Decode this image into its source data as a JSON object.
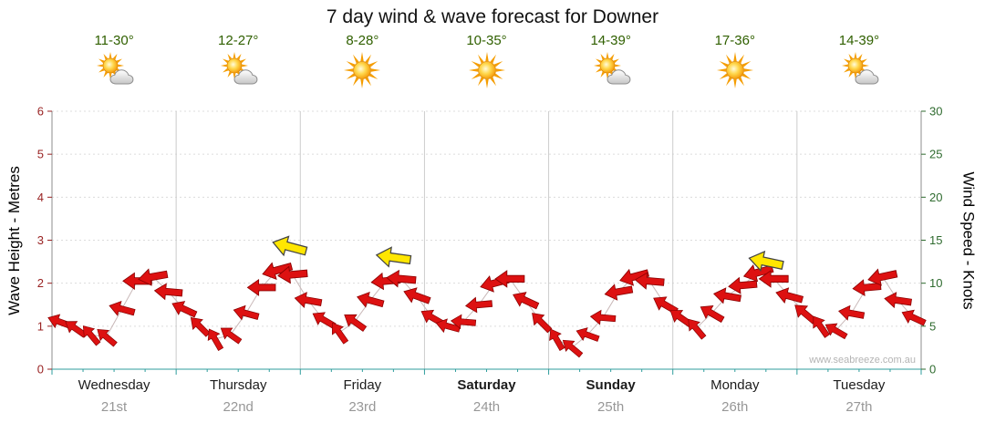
{
  "title": "7 day wind & wave forecast for Downer",
  "watermark": "www.seabreeze.com.au",
  "axes": {
    "left_label": "Wave Height - Metres",
    "right_label": "Wind Speed - Knots",
    "left_ticks": [
      0,
      1,
      2,
      3,
      4,
      5,
      6
    ],
    "right_ticks": [
      0,
      5,
      10,
      15,
      20,
      25,
      30
    ]
  },
  "days": [
    {
      "name": "Wednesday",
      "date": "21st",
      "temp": "11-30°",
      "icon": "partly-cloudy",
      "bold": false
    },
    {
      "name": "Thursday",
      "date": "22nd",
      "temp": "12-27°",
      "icon": "partly-cloudy",
      "bold": false
    },
    {
      "name": "Friday",
      "date": "23rd",
      "temp": "8-28°",
      "icon": "sunny",
      "bold": false
    },
    {
      "name": "Saturday",
      "date": "24th",
      "temp": "10-35°",
      "icon": "sunny",
      "bold": true
    },
    {
      "name": "Sunday",
      "date": "25th",
      "temp": "14-39°",
      "icon": "partly-cloudy",
      "bold": true
    },
    {
      "name": "Monday",
      "date": "26th",
      "temp": "17-36°",
      "icon": "sunny",
      "bold": false
    },
    {
      "name": "Tuesday",
      "date": "27th",
      "temp": "14-39°",
      "icon": "partly-cloudy",
      "bold": false
    }
  ],
  "colors": {
    "arrow_red": "#dd1111",
    "arrow_outline": "#8a0000",
    "gust_yellow": "#ffe600",
    "gust_outline": "#444444",
    "temp_text": "#306000",
    "left_axis_text": "#992222",
    "right_axis_text": "#2f6b2f",
    "day_separator": "#cccccc",
    "grid_dotted": "#dcdcdc",
    "axis_line": "#8c8c8c",
    "bottom_axis": "#2f9d9d",
    "date_text": "#979797",
    "trend_line": "#c9b8b8"
  },
  "chart_data": {
    "type": "line",
    "title": "7 day wind & wave forecast for Downer",
    "ylabel_left": "Wave Height - Metres",
    "ylabel_right": "Wind Speed - Knots",
    "ylim_left": [
      0,
      6
    ],
    "ylim_right": [
      0,
      30
    ],
    "grid": true,
    "points_per_day": 8,
    "categories": [
      "Wednesday 21st",
      "Thursday 22nd",
      "Friday 23rd",
      "Saturday 24th",
      "Sunday 25th",
      "Monday 26th",
      "Tuesday 27th"
    ],
    "wave_height_m": [
      1.1,
      0.95,
      0.8,
      0.75,
      1.4,
      2.05,
      2.15,
      1.8,
      1.4,
      1.0,
      0.7,
      0.8,
      1.3,
      1.9,
      2.3,
      2.2,
      1.6,
      1.15,
      0.85,
      1.1,
      1.6,
      2.05,
      2.1,
      1.7,
      1.2,
      1.0,
      1.1,
      1.5,
      2.0,
      2.1,
      1.6,
      1.1,
      0.7,
      0.5,
      0.8,
      1.2,
      1.8,
      2.15,
      2.05,
      1.5,
      1.2,
      0.95,
      1.3,
      1.7,
      1.95,
      2.25,
      2.1,
      1.7,
      1.3,
      1.0,
      0.9,
      1.3,
      1.9,
      2.15,
      1.6,
      1.2
    ],
    "wind_speed_knots": [
      5.5,
      4.75,
      4,
      3.75,
      7,
      10.25,
      10.75,
      9,
      7,
      5,
      3.5,
      4,
      6.5,
      9.5,
      11.5,
      11,
      8,
      5.75,
      4.25,
      5.5,
      8,
      10.25,
      10.5,
      8.5,
      6,
      5,
      5.5,
      7.5,
      10,
      10.5,
      8,
      5.5,
      3.5,
      2.5,
      4,
      6,
      9,
      10.75,
      10.25,
      7.5,
      6,
      4.75,
      6.5,
      8.5,
      9.75,
      11.25,
      10.5,
      8.5,
      6.5,
      5,
      4.5,
      6.5,
      9.5,
      10.75,
      8,
      6
    ],
    "wind_dir_deg": [
      200,
      215,
      230,
      220,
      195,
      180,
      170,
      185,
      205,
      225,
      240,
      215,
      195,
      180,
      165,
      175,
      190,
      210,
      235,
      215,
      195,
      175,
      185,
      200,
      210,
      195,
      185,
      175,
      165,
      180,
      205,
      225,
      240,
      220,
      200,
      185,
      170,
      165,
      185,
      210,
      215,
      230,
      210,
      190,
      175,
      165,
      180,
      195,
      220,
      235,
      210,
      190,
      175,
      168,
      188,
      205
    ],
    "gust_arrows": [
      {
        "x": 14.8,
        "value_m": 2.85,
        "dir_deg": 195
      },
      {
        "x": 21.5,
        "value_m": 2.6,
        "dir_deg": 188
      },
      {
        "x": 45.5,
        "value_m": 2.5,
        "dir_deg": 192
      }
    ]
  }
}
